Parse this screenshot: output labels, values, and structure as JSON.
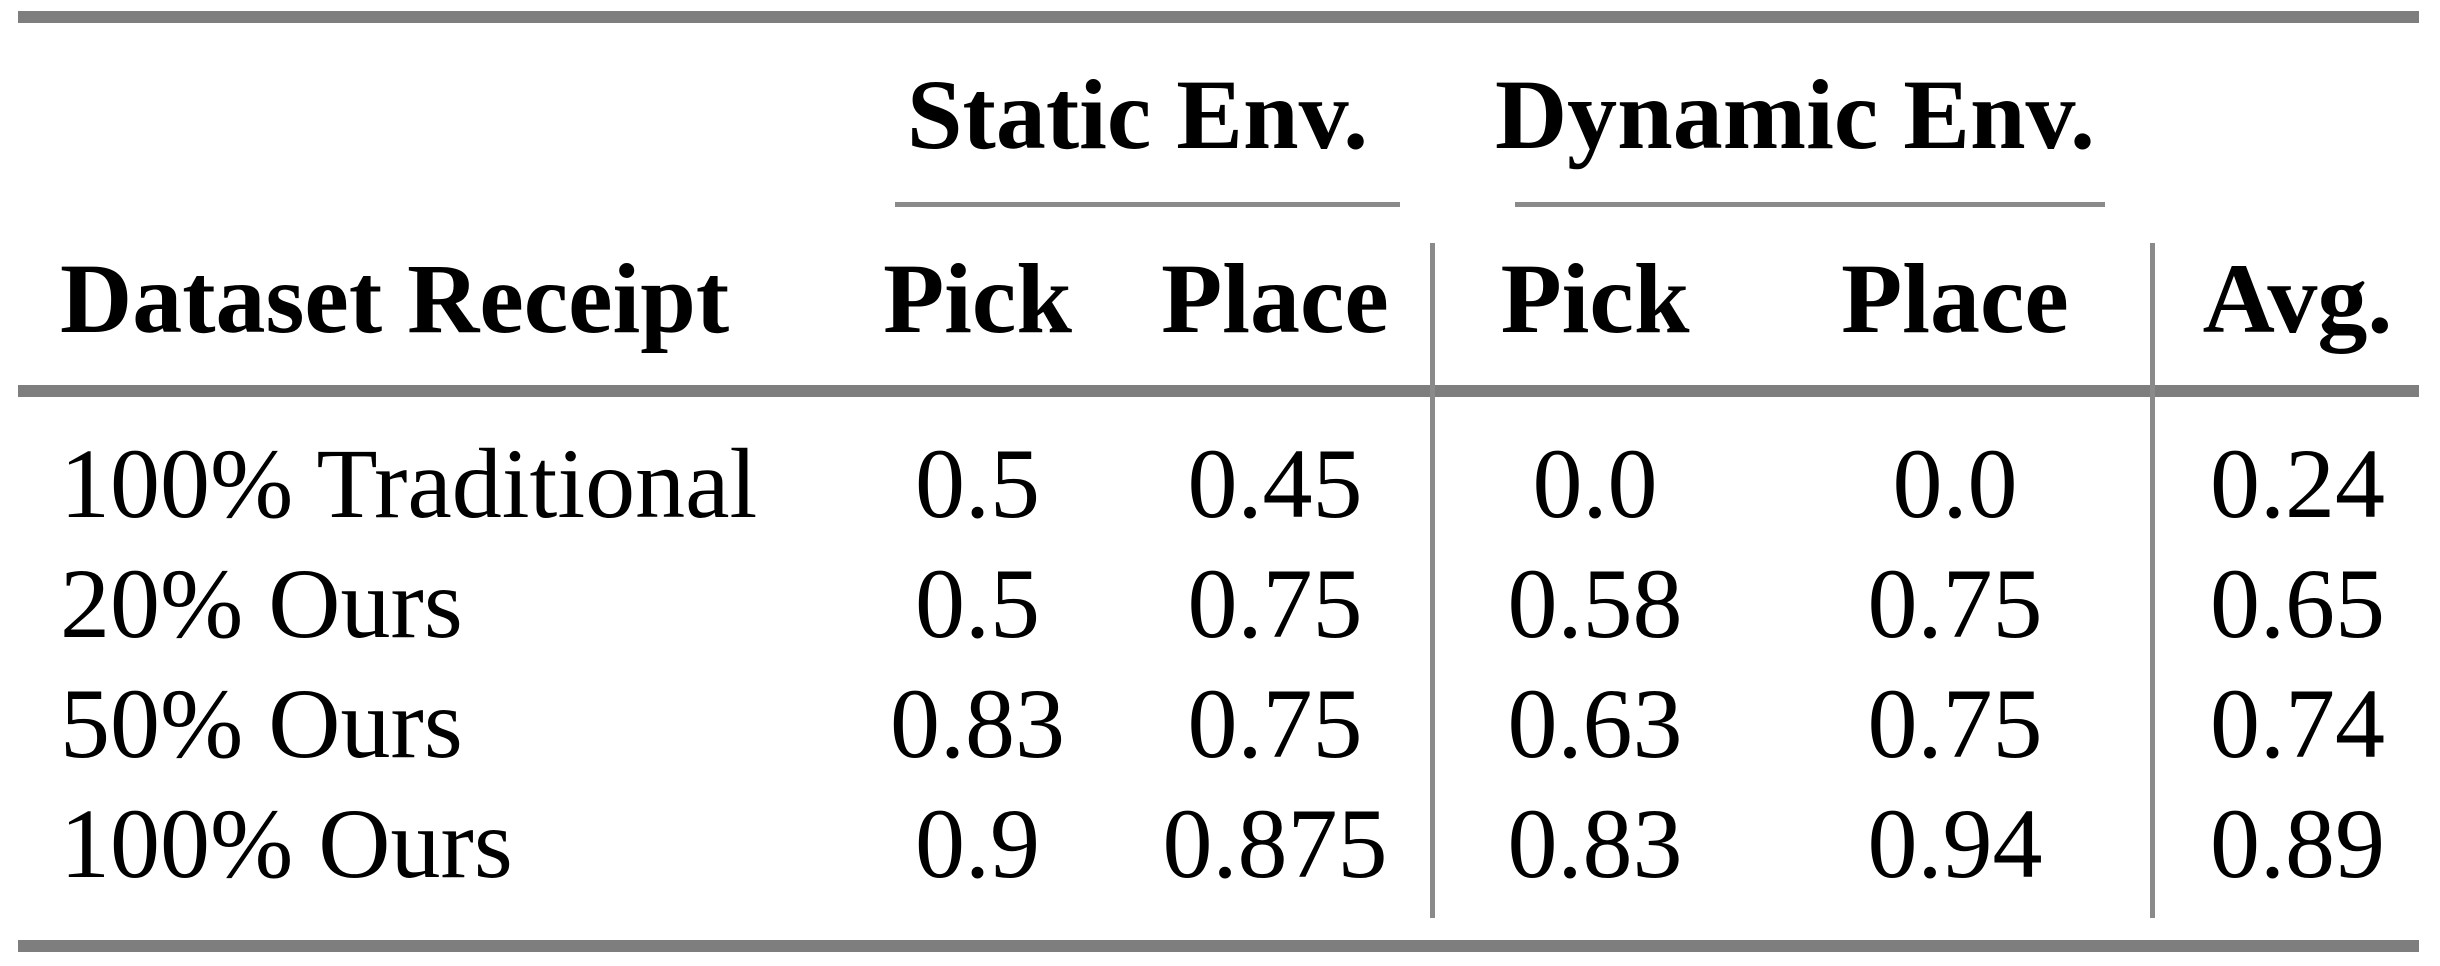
{
  "table": {
    "group_headers": [
      {
        "label": "Static Env."
      },
      {
        "label": "Dynamic Env."
      }
    ],
    "column_headers": [
      "Dataset Receipt",
      "Pick",
      "Place",
      "Pick",
      "Place",
      "Avg."
    ],
    "rows": [
      {
        "cells": [
          "100% Traditional",
          "0.5",
          "0.45",
          "0.0",
          "0.0",
          "0.24"
        ]
      },
      {
        "cells": [
          "20% Ours",
          "0.5",
          "0.75",
          "0.58",
          "0.75",
          "0.65"
        ]
      },
      {
        "cells": [
          "50% Ours",
          "0.83",
          "0.75",
          "0.63",
          "0.75",
          "0.74"
        ]
      },
      {
        "cells": [
          "100% Ours",
          "0.9",
          "0.875",
          "0.83",
          "0.94",
          "0.89"
        ]
      }
    ],
    "colors": {
      "rule": "#7e7e7e",
      "divider": "#8a8a8a",
      "text": "#000000",
      "background": "#ffffff"
    }
  }
}
